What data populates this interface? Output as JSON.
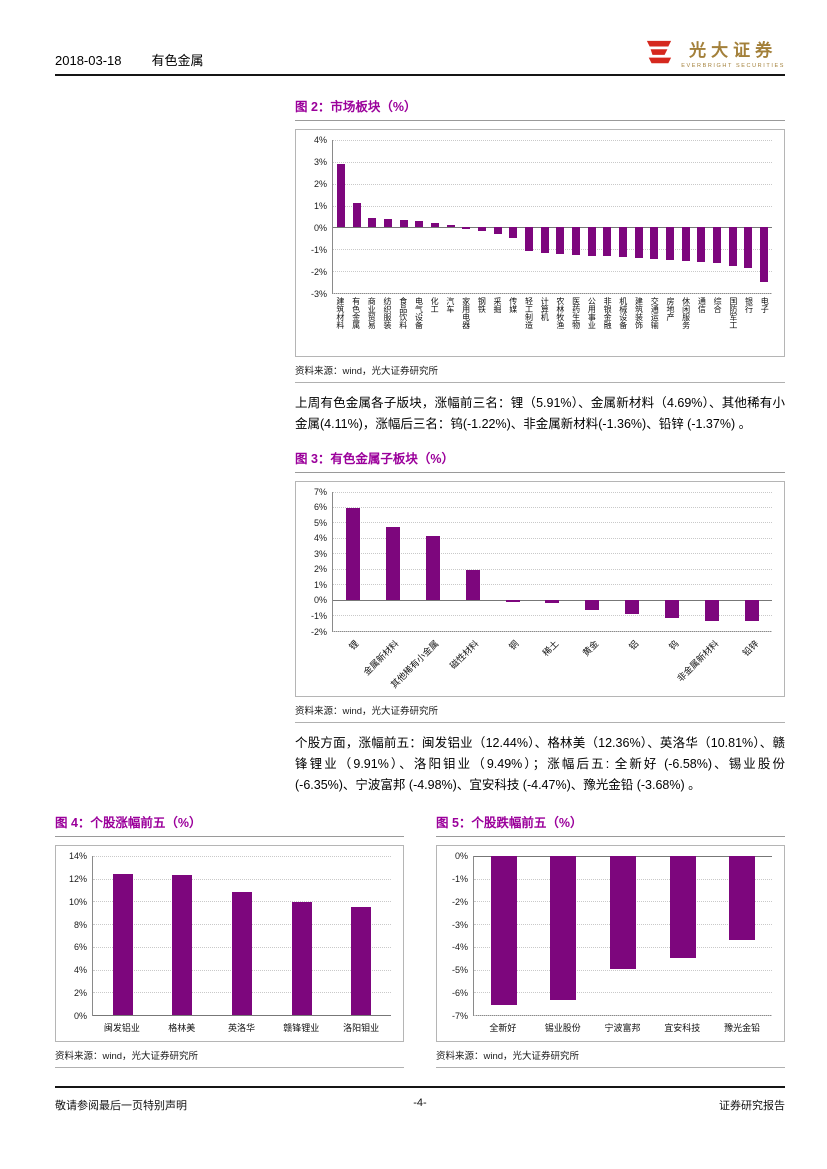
{
  "header": {
    "date": "2018-03-18",
    "category": "有色金属",
    "logo_cn": "光大证券",
    "logo_en": "EVERBRIGHT SECURITIES"
  },
  "figures": {
    "fig2_title": "图 2：市场板块（%）",
    "fig3_title": "图 3：有色金属子板块（%）",
    "fig4_title": "图 4：个股涨幅前五（%）",
    "fig5_title": "图 5：个股跌幅前五（%）",
    "source": "资料来源：wind，光大证券研究所"
  },
  "paragraphs": {
    "p1": "上周有色金属各子版块，涨幅前三名：锂（5.91%）、金属新材料（4.69%）、其他稀有小金属(4.11%)，涨幅后三名：钨(-1.22%)、非金属新材料(-1.36%)、铅锌 (-1.37%) 。",
    "p2": "个股方面，涨幅前五：闽发铝业（12.44%）、格林美（12.36%）、英洛华（10.81%）、赣锋锂业（9.91%）、洛阳钼业（9.49%）；涨幅后五: 全新好 (-6.58%)、锡业股份 (-6.35%)、宁波富邦 (-4.98%)、宜安科技 (-4.47%)、豫光金铅 (-3.68%) 。"
  },
  "footer": {
    "left": "敬请参阅最后一页特别声明",
    "center": "-4-",
    "right": "证券研究报告"
  },
  "colors": {
    "bar": "#7d067d",
    "figure_title": "#9b009b",
    "logo_red": "#d5281e",
    "logo_gold": "#a3803a"
  },
  "chart_data": [
    {
      "id": "market-sectors",
      "type": "bar",
      "title": "市场板块（%）",
      "categories": [
        "建筑材料",
        "有色金属",
        "商业贸易",
        "纺织服装",
        "食品饮料",
        "电气设备",
        "化工",
        "汽车",
        "家用电器",
        "钢铁",
        "采掘",
        "传媒",
        "轻工制造",
        "计算机",
        "农林牧渔",
        "医药生物",
        "公用事业",
        "非银金融",
        "机械设备",
        "建筑装饰",
        "交通运输",
        "房地产",
        "休闲服务",
        "通信",
        "综合",
        "国防军工",
        "银行",
        "电子"
      ],
      "values": [
        2.9,
        1.1,
        0.45,
        0.4,
        0.35,
        0.3,
        0.2,
        0.1,
        -0.05,
        -0.15,
        -0.3,
        -0.5,
        -1.1,
        -1.15,
        -1.2,
        -1.25,
        -1.3,
        -1.3,
        -1.35,
        -1.4,
        -1.45,
        -1.5,
        -1.55,
        -1.6,
        -1.65,
        -1.75,
        -1.85,
        -2.5
      ],
      "ylim": [
        -3,
        4
      ],
      "ytick": 1,
      "grid": true,
      "legend": false
    },
    {
      "id": "nonferrous-subsectors",
      "type": "bar",
      "title": "有色金属子板块（%）",
      "categories": [
        "锂",
        "金属新材料",
        "其他稀有小金属",
        "磁性材料",
        "铜",
        "稀土",
        "黄金",
        "铝",
        "钨",
        "非金属新材料",
        "铅锌"
      ],
      "values": [
        5.91,
        4.69,
        4.11,
        1.9,
        -0.15,
        -0.2,
        -0.7,
        -0.95,
        -1.22,
        -1.36,
        -1.37
      ],
      "ylim": [
        -2,
        7
      ],
      "ytick": 1,
      "grid": true,
      "legend": false
    },
    {
      "id": "top5-stock-gainers",
      "type": "bar",
      "title": "个股涨幅前五（%）",
      "categories": [
        "闽发铝业",
        "格林美",
        "英洛华",
        "赣锋锂业",
        "洛阳钼业"
      ],
      "values": [
        12.44,
        12.36,
        10.81,
        9.91,
        9.49
      ],
      "ylim": [
        0,
        14
      ],
      "ytick": 2,
      "grid": true,
      "legend": false
    },
    {
      "id": "top5-stock-losers",
      "type": "bar",
      "title": "个股跌幅前五（%）",
      "categories": [
        "全新好",
        "锡业股份",
        "宁波富邦",
        "宜安科技",
        "豫光金铅"
      ],
      "values": [
        -6.58,
        -6.35,
        -4.98,
        -4.47,
        -3.68
      ],
      "ylim": [
        -7,
        0
      ],
      "ytick": 1,
      "grid": true,
      "legend": false
    }
  ]
}
